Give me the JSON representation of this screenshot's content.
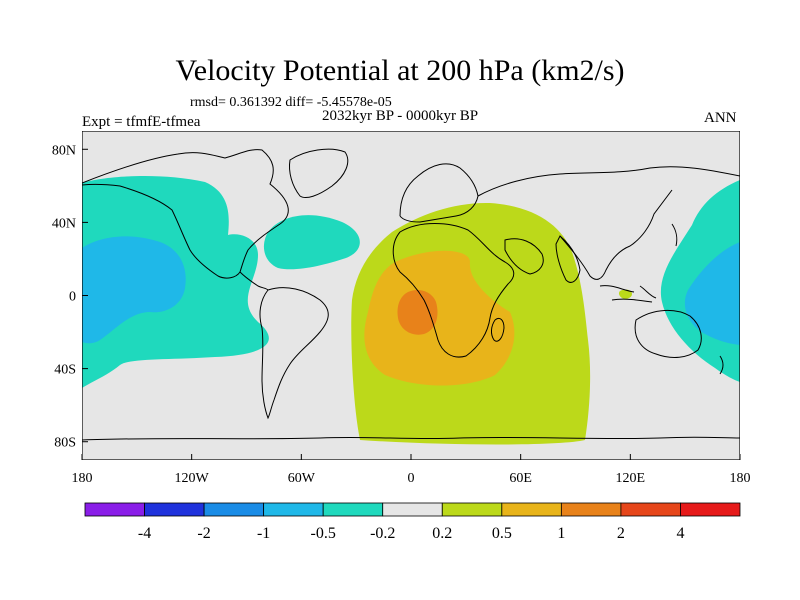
{
  "title": "Velocity Potential at 200 hPa (km2/s)",
  "stats_text": "rmsd= 0.361392 diff= -5.45578e-05",
  "period_text": "2032kyr BP - 0000kyr BP",
  "experiment_text": "Expt = tfmfE-tfmea",
  "season_text": "ANN",
  "axes": {
    "lon_range": [
      -180,
      180
    ],
    "lat_range": [
      -90,
      90
    ],
    "x_ticks": [
      {
        "lon": -180,
        "label": "180"
      },
      {
        "lon": -120,
        "label": "120W"
      },
      {
        "lon": -60,
        "label": "60W"
      },
      {
        "lon": 0,
        "label": "0"
      },
      {
        "lon": 60,
        "label": "60E"
      },
      {
        "lon": 120,
        "label": "120E"
      },
      {
        "lon": 180,
        "label": "180"
      }
    ],
    "y_ticks": [
      {
        "lat": 80,
        "label": "80N"
      },
      {
        "lat": 40,
        "label": "40N"
      },
      {
        "lat": 0,
        "label": "0"
      },
      {
        "lat": -40,
        "label": "40S"
      },
      {
        "lat": -80,
        "label": "80S"
      }
    ]
  },
  "colorbar": {
    "colors": [
      "#8a1ee8",
      "#1f32dc",
      "#1a8ce6",
      "#1fb8e8",
      "#1fd9bd",
      "#e6e6e6",
      "#bcd91a",
      "#e8b41a",
      "#e8821a",
      "#e6461a",
      "#e61a1a"
    ],
    "labels": [
      "-4",
      "-2",
      "-1",
      "-0.5",
      "-0.2",
      "0.2",
      "0.5",
      "1",
      "2",
      "4"
    ]
  },
  "colors": {
    "background": "#e6e6e6",
    "neg_weak": "#1fd9bd",
    "neg_mod": "#1fb8e8",
    "pos_weak": "#bcd91a",
    "pos_mod": "#e8b41a",
    "pos_strong": "#e8821a"
  }
}
